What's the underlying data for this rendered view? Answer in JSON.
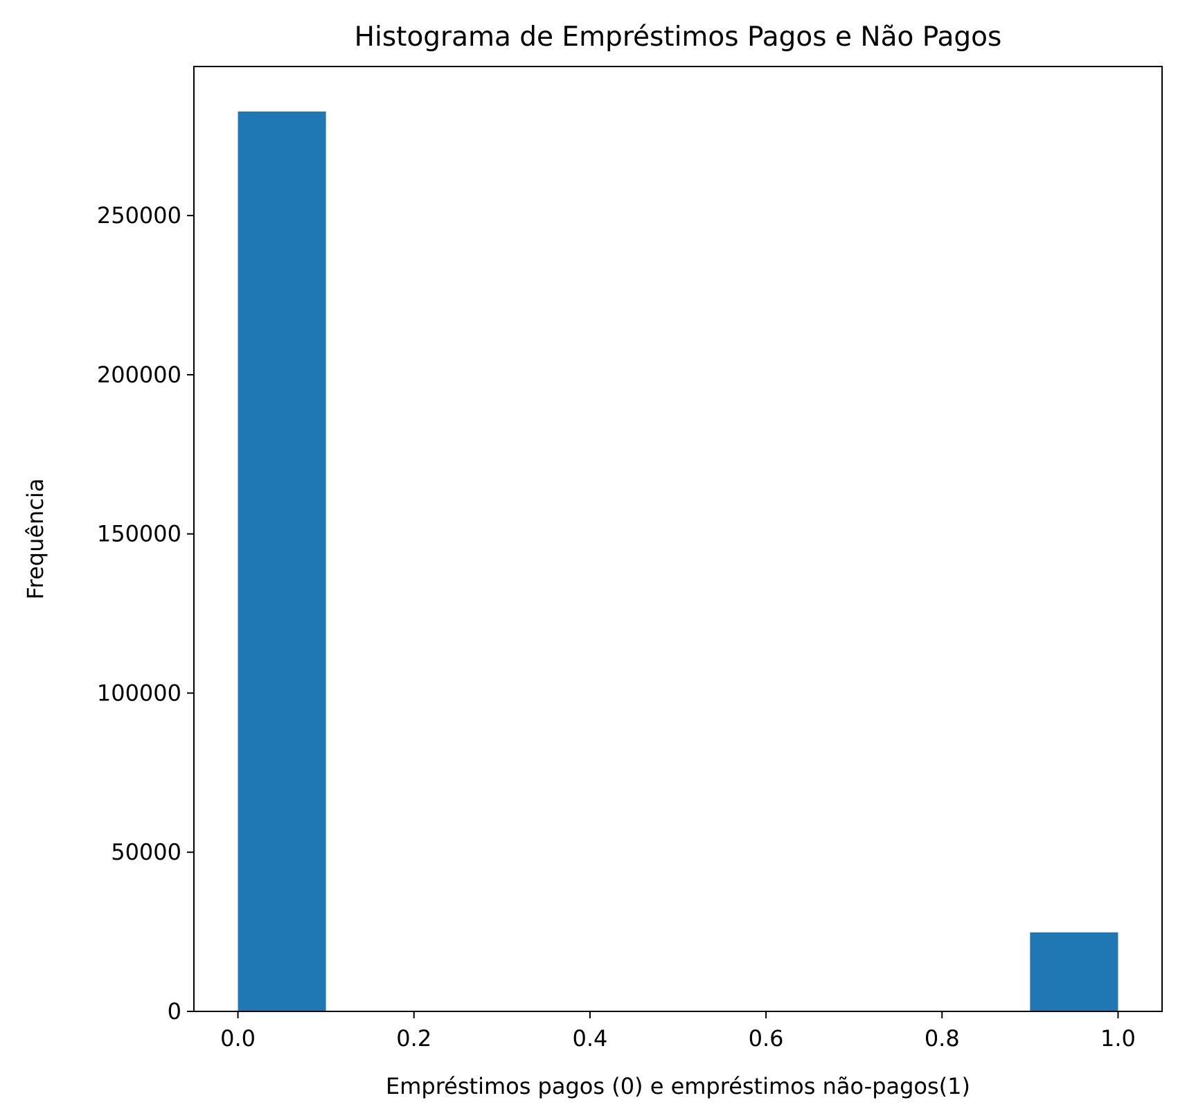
{
  "chart_data": {
    "type": "bar",
    "title": "Histograma de Empréstimos Pagos e Não Pagos",
    "xlabel": "Empréstimos pagos (0) e empréstimos não-pagos(1)",
    "ylabel": "Frequência",
    "bins": [
      {
        "x0": 0.0,
        "x1": 0.1,
        "value": 282686
      },
      {
        "x0": 0.1,
        "x1": 0.2,
        "value": 0
      },
      {
        "x0": 0.2,
        "x1": 0.3,
        "value": 0
      },
      {
        "x0": 0.3,
        "x1": 0.4,
        "value": 0
      },
      {
        "x0": 0.4,
        "x1": 0.5,
        "value": 0
      },
      {
        "x0": 0.5,
        "x1": 0.6,
        "value": 0
      },
      {
        "x0": 0.6,
        "x1": 0.7,
        "value": 0
      },
      {
        "x0": 0.7,
        "x1": 0.8,
        "value": 0
      },
      {
        "x0": 0.8,
        "x1": 0.9,
        "value": 0
      },
      {
        "x0": 0.9,
        "x1": 1.0,
        "value": 24825
      }
    ],
    "xlim": [
      -0.05,
      1.05
    ],
    "ylim": [
      0,
      296828
    ],
    "xticks": [
      "0.0",
      "0.2",
      "0.4",
      "0.6",
      "0.8",
      "1.0"
    ],
    "yticks": [
      "0",
      "50000",
      "100000",
      "150000",
      "200000",
      "250000"
    ],
    "bar_color": "#1f77b4",
    "grid": false,
    "legend": "none"
  }
}
